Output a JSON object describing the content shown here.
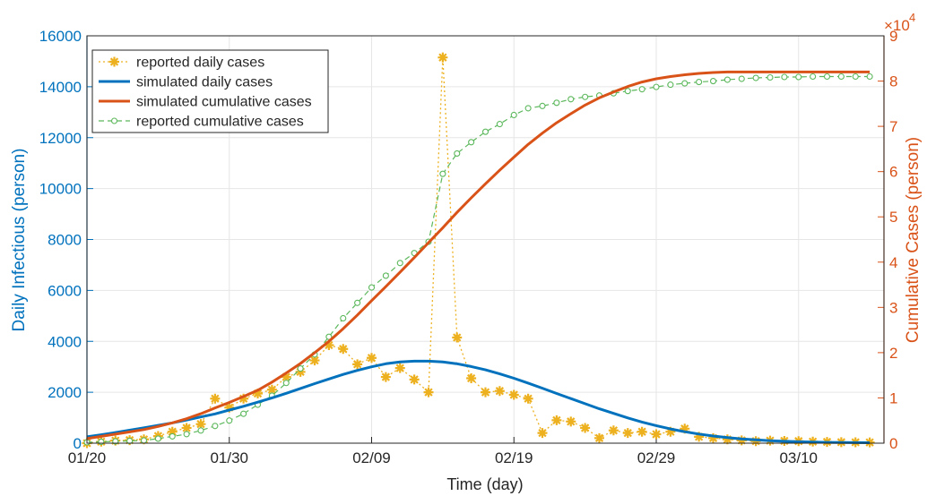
{
  "chart_data": {
    "type": "line",
    "title": "",
    "xlabel": "Time (day)",
    "ylabel_left": "Daily Infectious (person)",
    "ylabel_right": "Cumulative Cases (person)",
    "right_multiplier": "×10",
    "right_exponent": "4",
    "grid": true,
    "legend_position": "top-left",
    "x_ticks": [
      {
        "day": 0,
        "label": "01/20"
      },
      {
        "day": 10,
        "label": "01/30"
      },
      {
        "day": 20,
        "label": "02/09"
      },
      {
        "day": 30,
        "label": "02/19"
      },
      {
        "day": 40,
        "label": "02/29"
      },
      {
        "day": 50,
        "label": "03/10"
      }
    ],
    "xlim": [
      0,
      56
    ],
    "left_axis": {
      "ylim": [
        0,
        16000
      ],
      "ticks": [
        "0",
        "2000",
        "4000",
        "6000",
        "8000",
        "10000",
        "12000",
        "14000",
        "16000"
      ],
      "color": "#0072BD"
    },
    "right_axis": {
      "ylim": [
        0,
        9
      ],
      "ticks": [
        "0",
        "1",
        "2",
        "3",
        "4",
        "5",
        "6",
        "7",
        "8",
        "9"
      ],
      "color": "#D95319"
    },
    "series": [
      {
        "name": "reported daily cases",
        "axis": "left",
        "style": "dotted-star",
        "color": "#EDB120",
        "values": [
          0,
          60,
          100,
          120,
          150,
          280,
          450,
          600,
          750,
          1750,
          1400,
          1750,
          1950,
          2100,
          2600,
          2800,
          3250,
          3850,
          3700,
          3100,
          3350,
          2600,
          2950,
          2500,
          2000,
          15150,
          4150,
          2550,
          2000,
          2050,
          1900,
          1750,
          400,
          900,
          850,
          600,
          200,
          500,
          400,
          450,
          350,
          450,
          570,
          250,
          200,
          150,
          110,
          80,
          100,
          90,
          80,
          60,
          50,
          40,
          35,
          30
        ]
      },
      {
        "name": "simulated daily cases",
        "axis": "left",
        "style": "solid",
        "color": "#0072BD",
        "values": [
          250,
          330,
          420,
          510,
          600,
          700,
          800,
          910,
          1030,
          1150,
          1300,
          1450,
          1610,
          1780,
          1960,
          2150,
          2340,
          2520,
          2700,
          2860,
          3000,
          3120,
          3190,
          3220,
          3220,
          3190,
          3120,
          3010,
          2880,
          2720,
          2550,
          2360,
          2160,
          1950,
          1750,
          1550,
          1350,
          1170,
          990,
          830,
          690,
          560,
          450,
          360,
          280,
          220,
          170,
          130,
          100,
          75,
          55,
          42,
          32,
          25,
          20,
          16
        ]
      },
      {
        "name": "simulated cumulative cases",
        "axis": "right",
        "style": "solid",
        "color": "#D95319",
        "values": [
          0.1,
          0.15,
          0.2,
          0.25,
          0.3,
          0.37,
          0.45,
          0.54,
          0.65,
          0.78,
          0.9,
          1.03,
          1.17,
          1.35,
          1.55,
          1.76,
          2.0,
          2.25,
          2.53,
          2.83,
          3.15,
          3.46,
          3.78,
          4.1,
          4.43,
          4.76,
          5.1,
          5.42,
          5.73,
          6.03,
          6.32,
          6.6,
          6.85,
          7.08,
          7.28,
          7.47,
          7.63,
          7.76,
          7.88,
          7.98,
          8.05,
          8.1,
          8.14,
          8.17,
          8.19,
          8.2,
          8.2,
          8.2,
          8.2,
          8.2,
          8.2,
          8.2,
          8.2,
          8.2,
          8.2,
          8.2
        ]
      },
      {
        "name": "reported cumulative cases",
        "axis": "right",
        "style": "dashed-circle",
        "color": "#5CB85C",
        "values": [
          0.02,
          0.03,
          0.04,
          0.05,
          0.06,
          0.1,
          0.15,
          0.2,
          0.28,
          0.38,
          0.5,
          0.65,
          0.85,
          1.05,
          1.33,
          1.65,
          1.96,
          2.35,
          2.76,
          3.1,
          3.44,
          3.7,
          3.98,
          4.2,
          4.45,
          5.95,
          6.4,
          6.65,
          6.88,
          7.05,
          7.25,
          7.4,
          7.45,
          7.52,
          7.6,
          7.65,
          7.68,
          7.73,
          7.78,
          7.82,
          7.87,
          7.92,
          7.95,
          7.98,
          8.0,
          8.03,
          8.05,
          8.07,
          8.08,
          8.09,
          8.09,
          8.1,
          8.1,
          8.1,
          8.1,
          8.1
        ]
      }
    ]
  }
}
